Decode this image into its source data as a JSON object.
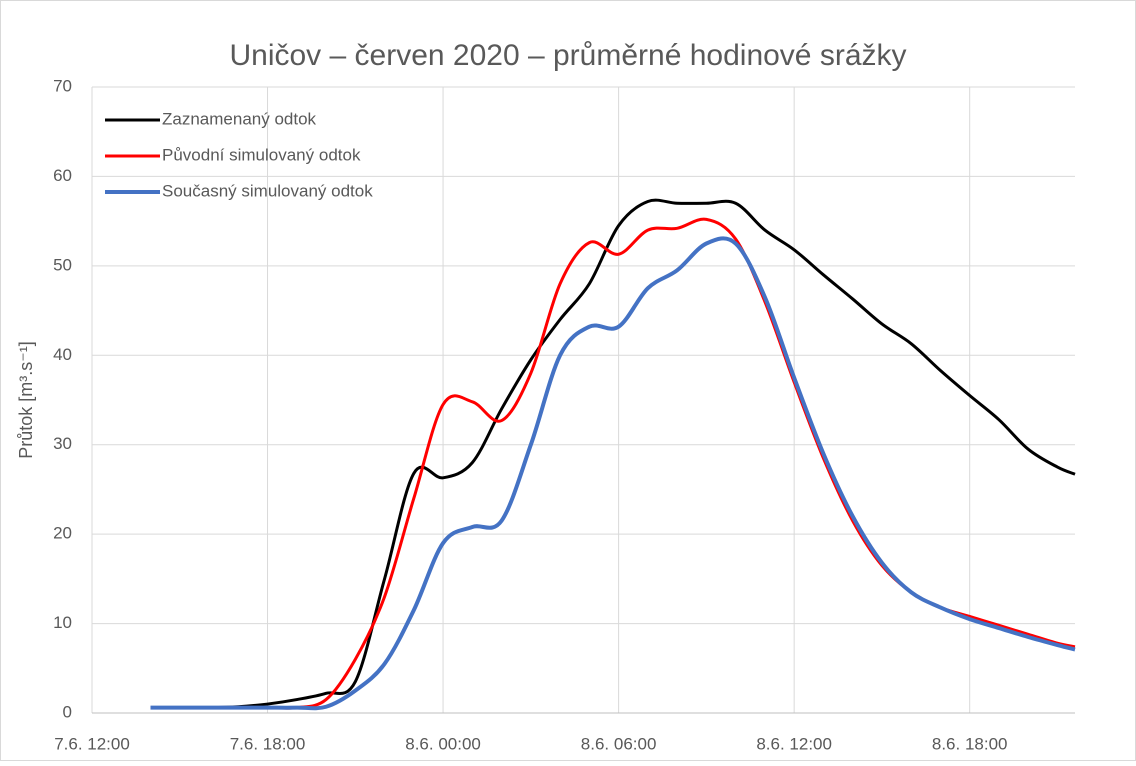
{
  "chart_data": {
    "type": "line",
    "title": "Uničov – červen 2020 – průměrné hodinové srážky",
    "y_label": "Průtok [m³.s⁻¹]",
    "x": [
      2,
      3,
      4,
      5,
      6,
      7,
      8,
      9,
      10,
      11,
      12,
      13,
      14,
      15,
      16,
      17,
      18,
      19,
      20,
      21,
      22,
      23,
      24,
      25,
      26,
      27,
      28,
      29,
      30,
      31,
      32,
      33,
      33.6
    ],
    "series": [
      {
        "name": "Zaznamenaný odtok",
        "color": "#000000",
        "values": [
          0.6,
          0.6,
          0.6,
          0.7,
          1.0,
          1.5,
          2.2,
          3.5,
          15,
          26.8,
          26.3,
          28,
          34,
          39.5,
          44,
          48,
          54.5,
          57.2,
          57,
          57,
          57,
          54,
          51.8,
          49,
          46.3,
          43.5,
          41.3,
          38.3,
          35.5,
          32.8,
          29.5,
          27.5,
          26.7
        ]
      },
      {
        "name": "Původní simulovaný odtok",
        "color": "#ff0000",
        "values": [
          0.6,
          0.6,
          0.6,
          0.6,
          0.6,
          0.6,
          1.5,
          6,
          13,
          24,
          34.5,
          34.8,
          32.7,
          38,
          48,
          52.6,
          51.3,
          54,
          54.2,
          55.2,
          53,
          46,
          37,
          28.5,
          21.5,
          16.5,
          13.5,
          11.8,
          10.8,
          9.8,
          8.8,
          7.8,
          7.4
        ]
      },
      {
        "name": "Současný simulovaný odtok",
        "color": "#4472c4",
        "values": [
          0.6,
          0.6,
          0.6,
          0.6,
          0.6,
          0.6,
          0.7,
          2.5,
          5.5,
          11.5,
          19,
          20.8,
          21.5,
          30,
          40,
          43.2,
          43.2,
          47.5,
          49.5,
          52.5,
          52.5,
          46.5,
          37.5,
          29,
          22,
          16.8,
          13.5,
          11.8,
          10.5,
          9.5,
          8.5,
          7.6,
          7.1
        ]
      }
    ],
    "xlim": [
      0,
      33.6
    ],
    "xticks": [
      {
        "value": 0,
        "label": "7.6. 12:00"
      },
      {
        "value": 6,
        "label": "7.6. 18:00"
      },
      {
        "value": 12,
        "label": "8.6. 00:00"
      },
      {
        "value": 18,
        "label": "8.6. 06:00"
      },
      {
        "value": 24,
        "label": "8.6. 12:00"
      },
      {
        "value": 30,
        "label": "8.6. 18:00"
      }
    ],
    "ylim": [
      0,
      70
    ],
    "yticks": [
      0,
      10,
      20,
      30,
      40,
      50,
      60,
      70
    ],
    "grid": true,
    "legend": "top-left"
  }
}
